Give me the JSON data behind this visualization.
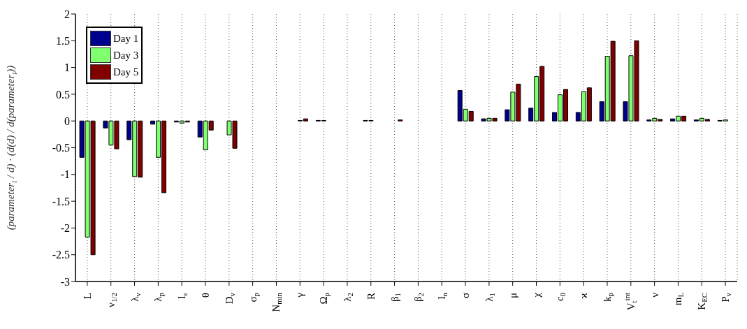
{
  "chart_data": {
    "type": "bar",
    "ylabel": "(parameter$_{i}$ / d) · (d(d) / d(parameter$_{i}$))",
    "categories": [
      "L",
      "v$_{1/2}$",
      "λ$_{v}$",
      "λ$_{p}$",
      "l$_{ε}$",
      "θ",
      "D$_{v}$",
      "σ$_{p}$",
      "N$_{min}$",
      "γ",
      "Ω$_{p}$",
      "λ$_{2}$",
      "R",
      "β$_{1}$",
      "β$_{2}$",
      "l$_{n}$",
      "σ",
      "λ$_{1}$",
      "μ",
      "χ",
      "c$_{0}$",
      "ϰ",
      "k$_{p}$",
      "V$_{t}$$^{int}$",
      "ν",
      "m$_{L}$",
      "K$_{EC}$",
      "P$_{v}$"
    ],
    "series": [
      {
        "name": "Day 1",
        "color": "#00008f",
        "values": [
          -0.68,
          -0.13,
          -0.35,
          -0.06,
          -0.02,
          -0.3,
          0,
          0,
          0,
          0,
          0.01,
          0,
          0.01,
          0,
          0,
          0,
          0.57,
          0.04,
          0.21,
          0.24,
          0.16,
          0.16,
          0.36,
          0.36,
          0.02,
          0.04,
          0.02,
          0.01
        ]
      },
      {
        "name": "Day 3",
        "color": "#80ff6f",
        "values": [
          -2.17,
          -0.45,
          -1.04,
          -0.68,
          -0.04,
          -0.54,
          -0.26,
          0,
          0,
          0.01,
          0.01,
          0,
          0.01,
          0,
          0,
          0,
          0.22,
          0.05,
          0.54,
          0.83,
          0.49,
          0.55,
          1.21,
          1.22,
          0.05,
          0.09,
          0.05,
          0.02
        ]
      },
      {
        "name": "Day 5",
        "color": "#800000",
        "values": [
          -2.5,
          -0.52,
          -1.05,
          -1.34,
          -0.02,
          -0.17,
          -0.51,
          0,
          0,
          0.04,
          0,
          0,
          0,
          0.02,
          0,
          0,
          0.18,
          0.05,
          0.69,
          1.02,
          0.59,
          0.62,
          1.49,
          1.5,
          0.03,
          0.09,
          0.03,
          0
        ]
      }
    ],
    "ylim": [
      -3,
      2
    ],
    "yticks": [
      -3,
      -2.5,
      -2,
      -1.5,
      -1,
      -0.5,
      0,
      0.5,
      1,
      1.5,
      2
    ],
    "grid": "x",
    "legend": "top left"
  }
}
